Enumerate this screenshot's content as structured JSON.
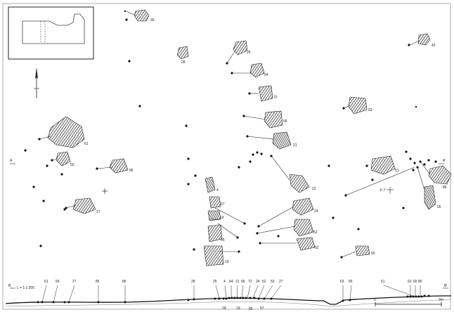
{
  "plan_labels": {
    "p1": "66",
    "p2": "42",
    "p3": "25",
    "p4": "28",
    "p5": "54",
    "p6": "72",
    "p7": "63",
    "p8": "61",
    "p9": "66",
    "p10": "21",
    "p11": "50",
    "p12": "85",
    "p13": "51",
    "p14": "86",
    "p15": "4",
    "p16": "22",
    "p17": "65",
    "p18": "57",
    "p19": "27",
    "p20": "24",
    "p21": "19",
    "p22": "52",
    "p23": "55",
    "p24": "19",
    "p25": "52",
    "p26": "56"
  },
  "section_labels": {
    "s1": "61",
    "s2": "50",
    "s3": "27",
    "s4": "85",
    "s5": "86",
    "s6": "28",
    "s7": "25",
    "s8": "4",
    "s9": "54",
    "s10": "21",
    "s11": "66",
    "s12": "72",
    "s13": "24",
    "s14": "52",
    "s15": "53",
    "s16": "27",
    "s17": "63",
    "s18": "56",
    "s19": "51",
    "s20": "62",
    "s21": "65",
    "s22": "86",
    "s23": "18",
    "s24": "19",
    "s25": "65",
    "s26": "57"
  },
  "markers": {
    "left_a": "A",
    "right_a": "A'",
    "left_b": "B",
    "right_b": "B'"
  },
  "scale_text": "L = 1:1 200",
  "scale_bar": {
    "start": "0",
    "end": "2m"
  },
  "feature_tag": "F-7"
}
